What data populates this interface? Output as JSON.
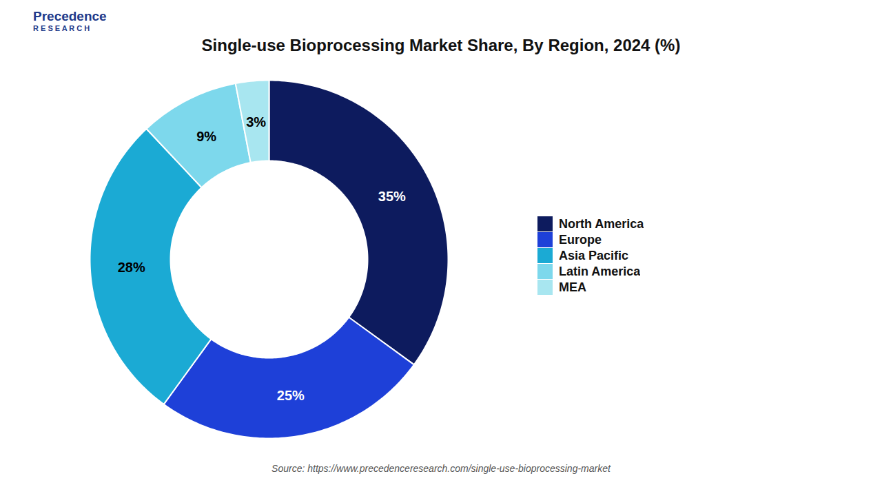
{
  "chart_data": {
    "type": "pie",
    "title": "Single-use Bioprocessing Market Share, By Region, 2024 (%)",
    "categories": [
      "North America",
      "Europe",
      "Asia Pacific",
      "Latin America",
      "MEA"
    ],
    "values": [
      35,
      25,
      28,
      9,
      3
    ],
    "value_labels": [
      "35%",
      "25%",
      "28%",
      "9%",
      "3%"
    ],
    "colors": [
      "#0d1b5e",
      "#1e40d8",
      "#1baad4",
      "#7dd8ec",
      "#a8e6f0"
    ],
    "data_labels": true,
    "legend": "right",
    "annotations": [
      "Precedence",
      "R E S E A R C H",
      "Source: https://www.precedenceresearch.com/single-use-bioprocessing-market"
    ]
  }
}
